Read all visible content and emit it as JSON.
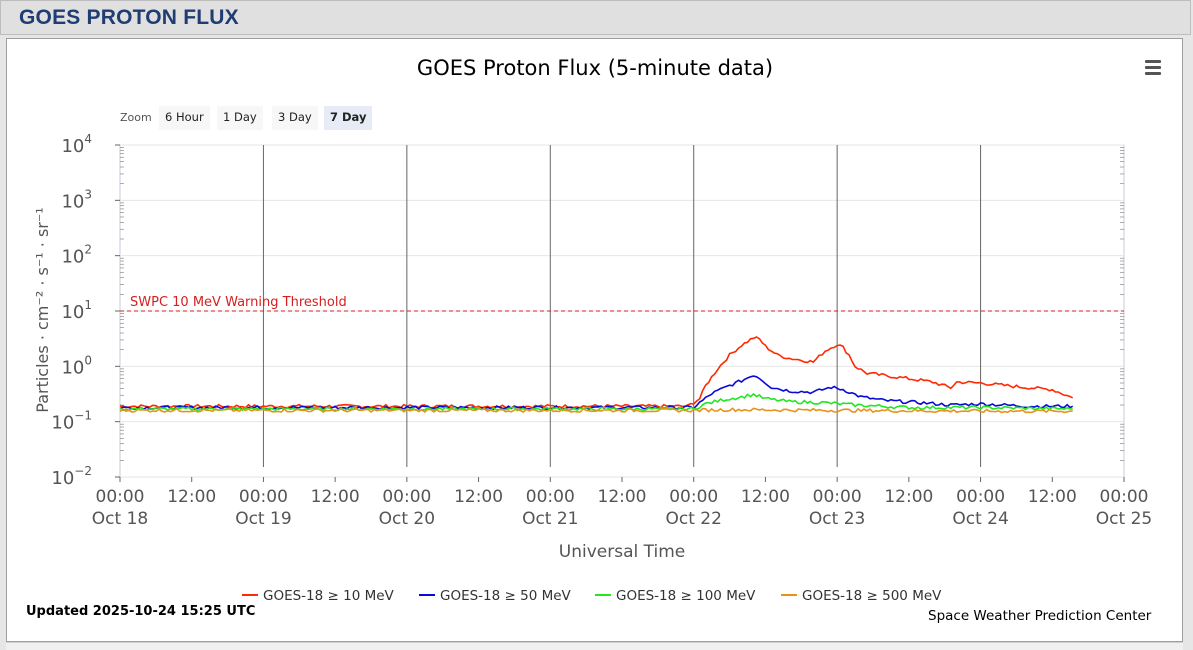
{
  "page": {
    "title": "GOES PROTON FLUX"
  },
  "chart_data": {
    "type": "line",
    "title": "GOES Proton Flux (5-minute data)",
    "xlabel": "Universal Time",
    "ylabel": "Particles · cm⁻² · s⁻¹ · sr⁻¹",
    "y_scale": "log",
    "ylim": [
      0.01,
      10000
    ],
    "xlim": [
      "2025-10-18 00:00",
      "2025-10-25 00:00"
    ],
    "y_ticks": [
      {
        "value": 0.01,
        "base": "10",
        "exp": "−2"
      },
      {
        "value": 0.1,
        "base": "10",
        "exp": "−1"
      },
      {
        "value": 1,
        "base": "10",
        "exp": "0"
      },
      {
        "value": 10,
        "base": "10",
        "exp": "1"
      },
      {
        "value": 100,
        "base": "10",
        "exp": "2"
      },
      {
        "value": 1000,
        "base": "10",
        "exp": "3"
      },
      {
        "value": 10000,
        "base": "10",
        "exp": "4"
      }
    ],
    "x_ticks": [
      {
        "time": "2025-10-18 00:00",
        "top": "00:00",
        "bottom": "Oct 18"
      },
      {
        "time": "2025-10-18 12:00",
        "top": "12:00",
        "bottom": ""
      },
      {
        "time": "2025-10-19 00:00",
        "top": "00:00",
        "bottom": "Oct 19"
      },
      {
        "time": "2025-10-19 12:00",
        "top": "12:00",
        "bottom": ""
      },
      {
        "time": "2025-10-20 00:00",
        "top": "00:00",
        "bottom": "Oct 20"
      },
      {
        "time": "2025-10-20 12:00",
        "top": "12:00",
        "bottom": ""
      },
      {
        "time": "2025-10-21 00:00",
        "top": "00:00",
        "bottom": "Oct 21"
      },
      {
        "time": "2025-10-21 12:00",
        "top": "12:00",
        "bottom": ""
      },
      {
        "time": "2025-10-22 00:00",
        "top": "00:00",
        "bottom": "Oct 22"
      },
      {
        "time": "2025-10-22 12:00",
        "top": "12:00",
        "bottom": ""
      },
      {
        "time": "2025-10-23 00:00",
        "top": "00:00",
        "bottom": "Oct 23"
      },
      {
        "time": "2025-10-23 12:00",
        "top": "12:00",
        "bottom": ""
      },
      {
        "time": "2025-10-24 00:00",
        "top": "00:00",
        "bottom": "Oct 24"
      },
      {
        "time": "2025-10-24 12:00",
        "top": "12:00",
        "bottom": ""
      },
      {
        "time": "2025-10-25 00:00",
        "top": "00:00",
        "bottom": "Oct 25"
      }
    ],
    "day_lines": [
      "2025-10-19 00:00",
      "2025-10-20 00:00",
      "2025-10-21 00:00",
      "2025-10-22 00:00",
      "2025-10-23 00:00",
      "2025-10-24 00:00"
    ],
    "threshold": {
      "label": "SWPC 10 MeV Warning Threshold",
      "value": 10,
      "color": "#d62020"
    },
    "series": [
      {
        "name": "GOES-18 ≥ 10 MeV",
        "color": "#ff2a00",
        "points": [
          [
            "2025-10-18 00:00",
            0.19
          ],
          [
            "2025-10-19 00:00",
            0.19
          ],
          [
            "2025-10-20 00:00",
            0.19
          ],
          [
            "2025-10-21 00:00",
            0.19
          ],
          [
            "2025-10-21 23:00",
            0.19
          ],
          [
            "2025-10-22 01:00",
            0.26
          ],
          [
            "2025-10-22 02:00",
            0.45
          ],
          [
            "2025-10-22 04:00",
            0.9
          ],
          [
            "2025-10-22 06:00",
            1.6
          ],
          [
            "2025-10-22 08:00",
            2.4
          ],
          [
            "2025-10-22 10:00",
            3.3
          ],
          [
            "2025-10-22 11:00",
            3.1
          ],
          [
            "2025-10-22 12:00",
            2.3
          ],
          [
            "2025-10-22 14:00",
            1.6
          ],
          [
            "2025-10-22 16:00",
            1.4
          ],
          [
            "2025-10-22 18:00",
            1.3
          ],
          [
            "2025-10-22 20:00",
            1.2
          ],
          [
            "2025-10-22 22:00",
            1.9
          ],
          [
            "2025-10-23 00:00",
            2.5
          ],
          [
            "2025-10-23 01:00",
            2.2
          ],
          [
            "2025-10-23 02:00",
            1.6
          ],
          [
            "2025-10-23 03:00",
            1.0
          ],
          [
            "2025-10-23 05:00",
            0.75
          ],
          [
            "2025-10-23 08:00",
            0.68
          ],
          [
            "2025-10-23 12:00",
            0.6
          ],
          [
            "2025-10-23 16:00",
            0.52
          ],
          [
            "2025-10-23 19:00",
            0.41
          ],
          [
            "2025-10-23 20:00",
            0.52
          ],
          [
            "2025-10-24 00:00",
            0.5
          ],
          [
            "2025-10-24 06:00",
            0.43
          ],
          [
            "2025-10-24 12:00",
            0.38
          ],
          [
            "2025-10-24 15:25",
            0.27
          ]
        ]
      },
      {
        "name": "GOES-18 ≥ 50 MeV",
        "color": "#0a0ad6",
        "points": [
          [
            "2025-10-18 00:00",
            0.18
          ],
          [
            "2025-10-19 00:00",
            0.18
          ],
          [
            "2025-10-20 00:00",
            0.18
          ],
          [
            "2025-10-21 00:00",
            0.18
          ],
          [
            "2025-10-22 00:00",
            0.18
          ],
          [
            "2025-10-22 01:00",
            0.22
          ],
          [
            "2025-10-22 03:00",
            0.32
          ],
          [
            "2025-10-22 06:00",
            0.45
          ],
          [
            "2025-10-22 08:00",
            0.55
          ],
          [
            "2025-10-22 10:00",
            0.7
          ],
          [
            "2025-10-22 11:00",
            0.62
          ],
          [
            "2025-10-22 13:00",
            0.42
          ],
          [
            "2025-10-22 16:00",
            0.36
          ],
          [
            "2025-10-22 20:00",
            0.34
          ],
          [
            "2025-10-22 23:00",
            0.42
          ],
          [
            "2025-10-23 01:00",
            0.38
          ],
          [
            "2025-10-23 04:00",
            0.28
          ],
          [
            "2025-10-23 08:00",
            0.24
          ],
          [
            "2025-10-23 14:00",
            0.22
          ],
          [
            "2025-10-23 19:00",
            0.2
          ],
          [
            "2025-10-24 00:00",
            0.21
          ],
          [
            "2025-10-24 08:00",
            0.19
          ],
          [
            "2025-10-24 15:25",
            0.19
          ]
        ]
      },
      {
        "name": "GOES-18 ≥ 100 MeV",
        "color": "#22e622",
        "points": [
          [
            "2025-10-18 00:00",
            0.17
          ],
          [
            "2025-10-19 00:00",
            0.17
          ],
          [
            "2025-10-20 00:00",
            0.17
          ],
          [
            "2025-10-21 00:00",
            0.17
          ],
          [
            "2025-10-22 00:00",
            0.17
          ],
          [
            "2025-10-22 02:00",
            0.21
          ],
          [
            "2025-10-22 05:00",
            0.25
          ],
          [
            "2025-10-22 08:00",
            0.28
          ],
          [
            "2025-10-22 10:00",
            0.31
          ],
          [
            "2025-10-22 12:00",
            0.26
          ],
          [
            "2025-10-22 16:00",
            0.23
          ],
          [
            "2025-10-22 22:00",
            0.22
          ],
          [
            "2025-10-23 03:00",
            0.2
          ],
          [
            "2025-10-23 12:00",
            0.18
          ],
          [
            "2025-10-24 00:00",
            0.18
          ],
          [
            "2025-10-24 15:25",
            0.17
          ]
        ]
      },
      {
        "name": "GOES-18 ≥ 500 MeV",
        "color": "#e8921a",
        "points": [
          [
            "2025-10-18 00:00",
            0.16
          ],
          [
            "2025-10-19 00:00",
            0.16
          ],
          [
            "2025-10-20 00:00",
            0.16
          ],
          [
            "2025-10-21 00:00",
            0.16
          ],
          [
            "2025-10-22 00:00",
            0.16
          ],
          [
            "2025-10-22 06:00",
            0.165
          ],
          [
            "2025-10-23 00:00",
            0.16
          ],
          [
            "2025-10-24 00:00",
            0.155
          ],
          [
            "2025-10-24 15:25",
            0.155
          ]
        ]
      }
    ],
    "legend_placement": "bottom"
  },
  "toolbar": {
    "zoom_label": "Zoom",
    "zoom_options": [
      "6 Hour",
      "1 Day",
      "3 Day",
      "7 Day"
    ],
    "active_zoom": "7 Day"
  },
  "footer": {
    "updated": "Updated 2025-10-24 15:25 UTC",
    "credit": "Space Weather Prediction Center"
  }
}
